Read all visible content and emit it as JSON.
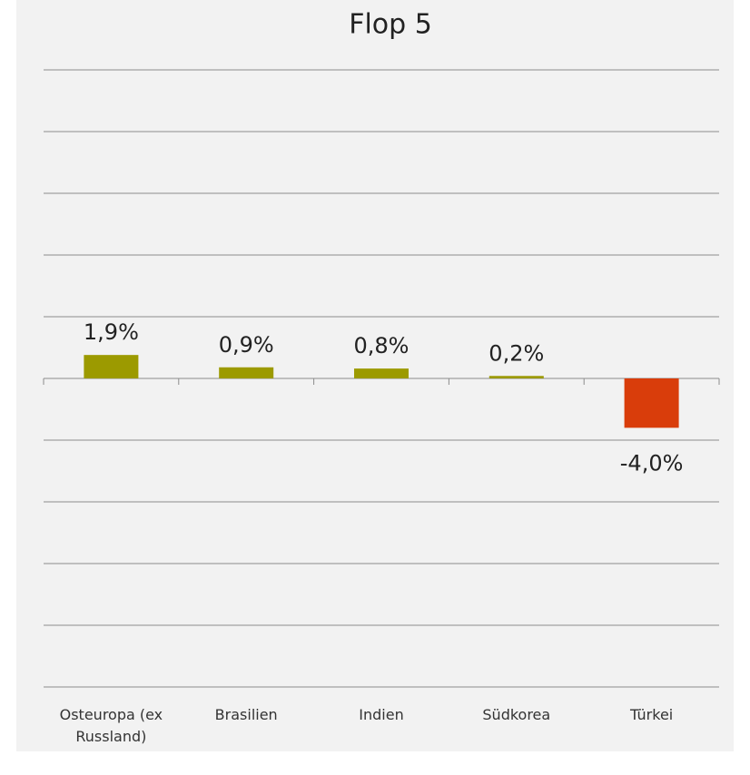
{
  "chart_data": {
    "type": "bar",
    "title": "Flop 5",
    "categories": [
      "Osteuropa (ex Russland)",
      "Brasilien",
      "Indien",
      "Südkorea",
      "Türkei"
    ],
    "values": [
      1.9,
      0.9,
      0.8,
      0.2,
      -4.0
    ],
    "value_labels": [
      "1,9%",
      "0,9%",
      "0,8%",
      "0,2%",
      "-4,0%"
    ],
    "colors": [
      "#9c9a00",
      "#9c9a00",
      "#9c9a00",
      "#9c9a00",
      "#d93d0b"
    ],
    "ylim": [
      -25,
      25
    ],
    "yticks": [
      -25,
      -20,
      -15,
      -10,
      -5,
      0,
      5,
      10,
      15,
      20,
      25
    ],
    "grid": true
  }
}
